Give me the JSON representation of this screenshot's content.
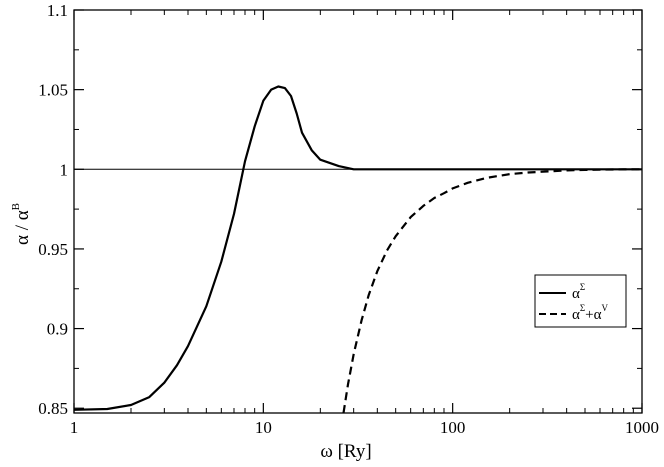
{
  "chart_data": {
    "type": "line",
    "xscale": "log",
    "xlim": [
      1,
      1000
    ],
    "ylim": [
      0.847,
      1.1
    ],
    "x_ticks": [
      {
        "value": 1,
        "label": "1"
      },
      {
        "value": 10,
        "label": "10"
      },
      {
        "value": 100,
        "label": "100"
      },
      {
        "value": 1000,
        "label": "1000"
      }
    ],
    "y_ticks": [
      {
        "value": 0.85,
        "label": "0.85"
      },
      {
        "value": 0.9,
        "label": "0.9"
      },
      {
        "value": 0.95,
        "label": "0.95"
      },
      {
        "value": 1.0,
        "label": "1"
      },
      {
        "value": 1.05,
        "label": "1.05"
      },
      {
        "value": 1.1,
        "label": "1.1"
      }
    ],
    "xlabel": "ω [Ry]",
    "ylabel": {
      "base": "α / α",
      "sup": "B"
    },
    "grid": false,
    "reference_line": {
      "y": 1.0,
      "style": "thin-solid"
    },
    "legend": {
      "position": "right",
      "entries": [
        {
          "label": "α",
          "sup": "Σ",
          "style": "solid"
        },
        {
          "label": "α",
          "sup": "Σ",
          "suffix": "+α",
          "suffix_sup": "V",
          "style": "dashed"
        }
      ]
    },
    "series": [
      {
        "style": "solid",
        "x": [
          1,
          1.5,
          2,
          2.5,
          3,
          3.5,
          4,
          5,
          6,
          7,
          8,
          9,
          10,
          11,
          12,
          13,
          14,
          15,
          16,
          18,
          20,
          25,
          30,
          40,
          50,
          100,
          200,
          500,
          1000
        ],
        "y": [
          0.849,
          0.8495,
          0.852,
          0.857,
          0.866,
          0.877,
          0.889,
          0.914,
          0.942,
          0.972,
          1.005,
          1.027,
          1.043,
          1.05,
          1.052,
          1.051,
          1.046,
          1.035,
          1.023,
          1.012,
          1.006,
          1.002,
          1.0,
          1.0,
          1.0,
          1.0,
          1.0,
          1.0,
          1.0
        ]
      },
      {
        "style": "dashed",
        "x": [
          26.5,
          28,
          30,
          33,
          36,
          40,
          45,
          50,
          60,
          70,
          80,
          90,
          100,
          120,
          150,
          200,
          250,
          300,
          400,
          500,
          600,
          800,
          1000
        ],
        "y": [
          0.847,
          0.865,
          0.884,
          0.905,
          0.921,
          0.936,
          0.949,
          0.958,
          0.97,
          0.977,
          0.982,
          0.985,
          0.988,
          0.9915,
          0.9945,
          0.997,
          0.998,
          0.9985,
          0.9993,
          0.9996,
          0.9998,
          0.9999,
          1.0
        ]
      }
    ]
  }
}
